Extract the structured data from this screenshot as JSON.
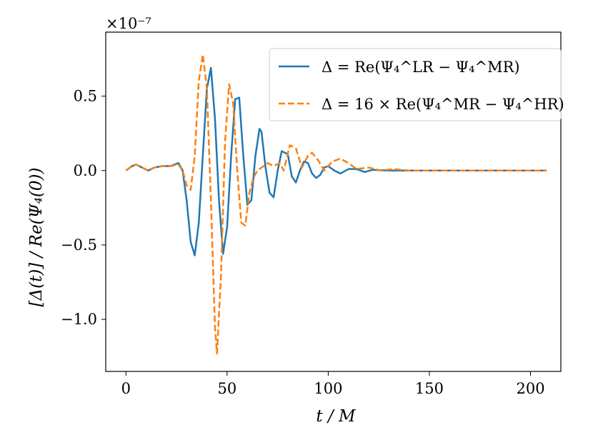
{
  "chart_data": {
    "type": "line",
    "xlabel": "t / M",
    "ylabel": "[Δ(t)] / Re(Ψ₄(0))",
    "y_scale_label": "×10⁻⁷",
    "xlim": [
      -10,
      215
    ],
    "ylim": [
      -1.35,
      0.93
    ],
    "x_ticks": [
      0,
      50,
      100,
      150,
      200
    ],
    "x_tick_labels": [
      "0",
      "50",
      "100",
      "150",
      "200"
    ],
    "y_ticks": [
      -1.0,
      -0.5,
      0.0,
      0.5
    ],
    "y_tick_labels": [
      "−1.0",
      "−0.5",
      "0.0",
      "0.5"
    ],
    "grid": false,
    "legend_position": "top-right",
    "series": [
      {
        "name": "Δ = Re(Ψ₄^LR − Ψ₄^MR)",
        "color": "#1f77b4",
        "style": "solid",
        "x": [
          0,
          3,
          5,
          8,
          11,
          14,
          18,
          22,
          26,
          28,
          30,
          32,
          34,
          36,
          38,
          40,
          42,
          44,
          46,
          48,
          50,
          52,
          54,
          56,
          58,
          60,
          62,
          64,
          66,
          67,
          69,
          71,
          73,
          75,
          77,
          80,
          82,
          84,
          86,
          88,
          90,
          92,
          94,
          96,
          98,
          100,
          103,
          106,
          110,
          114,
          118,
          122,
          130,
          140,
          150,
          160,
          180,
          208
        ],
        "y": [
          0,
          0.03,
          0.04,
          0.02,
          0.0,
          0.02,
          0.03,
          0.03,
          0.05,
          0.0,
          -0.2,
          -0.48,
          -0.57,
          -0.35,
          0.1,
          0.55,
          0.69,
          0.35,
          -0.2,
          -0.56,
          -0.38,
          0.1,
          0.48,
          0.49,
          0.1,
          -0.23,
          -0.2,
          0.1,
          0.28,
          0.26,
          0.02,
          -0.15,
          -0.18,
          0.0,
          0.13,
          0.11,
          -0.04,
          -0.08,
          0.0,
          0.06,
          0.05,
          -0.02,
          -0.05,
          -0.03,
          0.02,
          0.03,
          0.0,
          -0.02,
          0.01,
          0.01,
          -0.01,
          0.005,
          0.0,
          0.0,
          0.0,
          0.0,
          0.0,
          0.0
        ]
      },
      {
        "name": "Δ = 16 × Re(Ψ₄^MR − Ψ₄^HR)",
        "color": "#ff7f0e",
        "style": "dashed",
        "x": [
          0,
          3,
          5,
          8,
          11,
          14,
          18,
          22,
          26,
          28,
          30,
          32,
          34,
          36,
          38,
          40,
          42,
          44,
          45,
          47,
          49,
          51,
          53,
          55,
          57,
          59,
          61,
          63,
          65,
          67,
          70,
          73,
          76,
          78,
          81,
          84,
          87,
          90,
          92,
          95,
          98,
          102,
          106,
          110,
          114,
          120,
          126,
          132,
          140,
          150,
          160,
          180,
          208
        ],
        "y": [
          0,
          0.03,
          0.04,
          0.02,
          0.0,
          0.02,
          0.03,
          0.03,
          0.04,
          0.0,
          -0.1,
          -0.13,
          0.1,
          0.6,
          0.78,
          0.55,
          -0.2,
          -1.05,
          -1.23,
          -0.7,
          0.2,
          0.58,
          0.45,
          0.0,
          -0.35,
          -0.37,
          -0.15,
          -0.05,
          0.0,
          0.02,
          0.05,
          0.03,
          0.05,
          0.0,
          0.17,
          0.15,
          0.02,
          0.1,
          0.12,
          0.07,
          0.0,
          0.06,
          0.08,
          0.05,
          0.01,
          0.02,
          0.0,
          0.01,
          0.0,
          0.0,
          0.0,
          0.0,
          0.0
        ]
      }
    ]
  }
}
